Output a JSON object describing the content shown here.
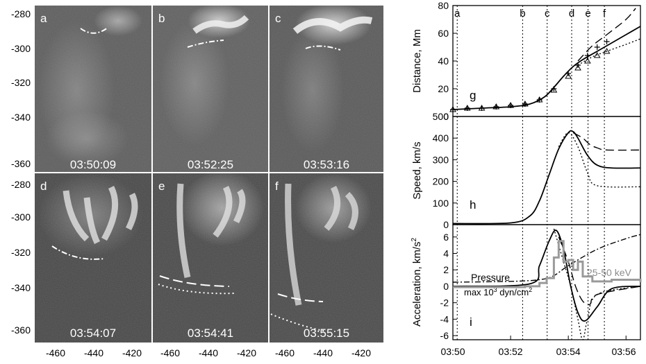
{
  "images": {
    "y_ticks": [
      "-280",
      "-300",
      "-320",
      "-340",
      "-360"
    ],
    "x_ticks": [
      "-460",
      "-440",
      "-420"
    ],
    "panels": [
      {
        "letter": "a",
        "time": "03:50:09"
      },
      {
        "letter": "b",
        "time": "03:52:25"
      },
      {
        "letter": "c",
        "time": "03:53:16"
      },
      {
        "letter": "d",
        "time": "03:54:07"
      },
      {
        "letter": "e",
        "time": "03:54:41"
      },
      {
        "letter": "f",
        "time": "03:55:15"
      }
    ]
  },
  "chart_data": [
    {
      "type": "line",
      "panel_label": "g",
      "ylabel": "Distance, Mm",
      "ylim": [
        0,
        80
      ],
      "yticks": [
        "0",
        "20",
        "40",
        "60",
        "80"
      ],
      "xlim": [
        "03:50",
        "03:56:30"
      ],
      "event_markers": {
        "labels": [
          "a",
          "b",
          "c",
          "d",
          "e",
          "f"
        ],
        "times": [
          "03:50:09",
          "03:52:25",
          "03:53:16",
          "03:54:07",
          "03:54:41",
          "03:55:15"
        ]
      },
      "series": [
        {
          "style": "solid",
          "x": [
            "03:50:00",
            "03:51:00",
            "03:52:00",
            "03:52:40",
            "03:53:10",
            "03:53:30",
            "03:53:50",
            "03:54:10",
            "03:54:30",
            "03:55:00",
            "03:55:30",
            "03:56:00",
            "03:56:30"
          ],
          "y": [
            5,
            6,
            7,
            9,
            14,
            21,
            29,
            36,
            41,
            47,
            53,
            59,
            65
          ]
        },
        {
          "style": "dashed",
          "x": [
            "03:54:20",
            "03:54:50",
            "03:55:20",
            "03:56:00",
            "03:56:20"
          ],
          "y": [
            40,
            51,
            59,
            70,
            78
          ]
        },
        {
          "style": "dotted",
          "x": [
            "03:54:20",
            "03:54:50",
            "03:55:20",
            "03:56:00",
            "03:56:30"
          ],
          "y": [
            37,
            43,
            47,
            52,
            56
          ]
        },
        {
          "style": "plus-markers",
          "x": [
            "03:50:00",
            "03:50:30",
            "03:51:00",
            "03:51:30",
            "03:52:00",
            "03:52:30",
            "03:53:00",
            "03:53:30",
            "03:54:00",
            "03:54:20",
            "03:54:40",
            "03:55:00",
            "03:55:20"
          ],
          "y": [
            5,
            6,
            6,
            7,
            8,
            9,
            12,
            20,
            31,
            37,
            44,
            50,
            54
          ]
        },
        {
          "style": "triangle-markers",
          "x": [
            "03:50:00",
            "03:50:30",
            "03:51:00",
            "03:51:30",
            "03:52:00",
            "03:52:30",
            "03:53:00",
            "03:53:30",
            "03:54:00",
            "03:54:20",
            "03:54:40",
            "03:55:00",
            "03:55:20"
          ],
          "y": [
            5,
            6,
            6,
            7,
            8,
            9,
            12,
            19,
            29,
            35,
            40,
            44,
            47
          ]
        }
      ]
    },
    {
      "type": "line",
      "panel_label": "h",
      "ylabel": "Speed, km/s",
      "ylim": [
        0,
        500
      ],
      "yticks": [
        "0",
        "100",
        "200",
        "300",
        "400",
        "500"
      ],
      "xlim": [
        "03:50",
        "03:56:30"
      ],
      "series": [
        {
          "style": "solid",
          "x": [
            "03:50:00",
            "03:52:00",
            "03:52:40",
            "03:53:00",
            "03:53:20",
            "03:53:40",
            "03:54:00",
            "03:54:10",
            "03:54:20",
            "03:54:40",
            "03:55:00",
            "03:55:30",
            "03:56:30"
          ],
          "y": [
            5,
            8,
            40,
            110,
            230,
            350,
            425,
            430,
            400,
            320,
            275,
            262,
            262
          ]
        },
        {
          "style": "dashed",
          "x": [
            "03:54:10",
            "03:54:30",
            "03:54:45",
            "03:55:00",
            "03:55:20",
            "03:56:30"
          ],
          "y": [
            425,
            400,
            370,
            355,
            345,
            345
          ]
        },
        {
          "style": "dotted",
          "x": [
            "03:53:40",
            "03:54:00",
            "03:54:20",
            "03:54:40",
            "03:55:00",
            "03:56:30"
          ],
          "y": [
            360,
            425,
            360,
            240,
            180,
            175
          ]
        }
      ]
    },
    {
      "type": "line",
      "panel_label": "i",
      "ylabel": "Acceleration, km/s",
      "ylabel_superscript": "2",
      "ylim": [
        -6.5,
        7.5
      ],
      "yticks": [
        "-6",
        "-4",
        "-2",
        "0",
        "2",
        "4",
        "6"
      ],
      "xlim": [
        "03:50",
        "03:56:30"
      ],
      "xticks": [
        "03:50",
        "03:52",
        "03:54",
        "03:56"
      ],
      "annotations": {
        "pressure": "Pressure",
        "pressure_unit_prefix": "max 10",
        "pressure_unit_exp": "3",
        "pressure_unit_rest": " dyn/cm",
        "pressure_unit_exp2": "2",
        "hxr": "25-50 keV"
      },
      "series": [
        {
          "style": "solid",
          "x": [
            "03:50:00",
            "03:52:40",
            "03:53:00",
            "03:53:20",
            "03:53:35",
            "03:53:50",
            "03:54:05",
            "03:54:20",
            "03:54:35",
            "03:55:00",
            "03:55:30",
            "03:56:30"
          ],
          "y": [
            0,
            0.3,
            2.5,
            5.5,
            6.8,
            4.5,
            0,
            -3.2,
            -4.2,
            -2.5,
            -0.3,
            0
          ]
        },
        {
          "style": "dashed",
          "x": [
            "03:53:40",
            "03:54:00",
            "03:54:15",
            "03:54:30",
            "03:54:45",
            "03:55:00",
            "03:56:30"
          ],
          "y": [
            6,
            3,
            0,
            -1.8,
            -2.2,
            -1,
            0
          ]
        },
        {
          "style": "dotted",
          "x": [
            "03:53:30",
            "03:53:50",
            "03:54:05",
            "03:54:20",
            "03:54:30",
            "03:54:40",
            "03:55:00",
            "03:56:30"
          ],
          "y": [
            7,
            3,
            0,
            -4,
            -6.5,
            -4,
            -1,
            0
          ]
        },
        {
          "style": "dash-dot",
          "x": [
            "03:50:00",
            "03:52:00",
            "03:53:00",
            "03:53:30",
            "03:54:00",
            "03:55:00",
            "03:56:00",
            "03:56:30"
          ],
          "y": [
            0.5,
            0.6,
            0.8,
            1.3,
            2.5,
            4.5,
            5.8,
            6.3
          ]
        },
        {
          "style": "gray-steps",
          "x": [
            "03:50:00",
            "03:52:30",
            "03:53:00",
            "03:53:15",
            "03:53:30",
            "03:53:40",
            "03:53:50",
            "03:54:00",
            "03:54:10",
            "03:54:20",
            "03:54:30",
            "03:54:50",
            "03:55:30",
            "03:56:30"
          ],
          "y": [
            -0.1,
            0,
            0.4,
            1,
            3.5,
            5.5,
            3,
            3.2,
            2,
            3,
            1.2,
            0.6,
            0.8,
            0.5
          ]
        }
      ]
    }
  ]
}
